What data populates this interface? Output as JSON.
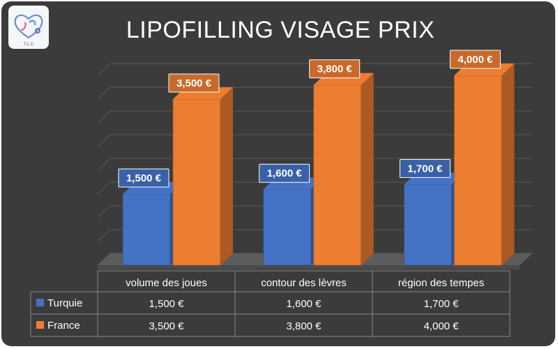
{
  "page": {
    "logo": {
      "icon": "heart-stethoscope-icon",
      "text": "T.L.C"
    }
  },
  "chart_data": {
    "type": "bar",
    "title": "LIPOFILLING VISAGE PRIX",
    "categories": [
      "volume des joues",
      "contour des lèvres",
      "région des tempes"
    ],
    "series": [
      {
        "name": "Turquie",
        "values": [
          1500,
          1600,
          1700
        ],
        "labels": [
          "1,500 €",
          "1,600 €",
          "1,700 €"
        ],
        "color": "#4472c4"
      },
      {
        "name": "France",
        "values": [
          3500,
          3800,
          4000
        ],
        "labels": [
          "3,500 €",
          "3,800 €",
          "4,000 €"
        ],
        "color": "#ed7d31"
      }
    ],
    "ylim": [
      0,
      4000
    ],
    "gridlines": true,
    "legend": "data-table-left",
    "style": "3d-column"
  }
}
